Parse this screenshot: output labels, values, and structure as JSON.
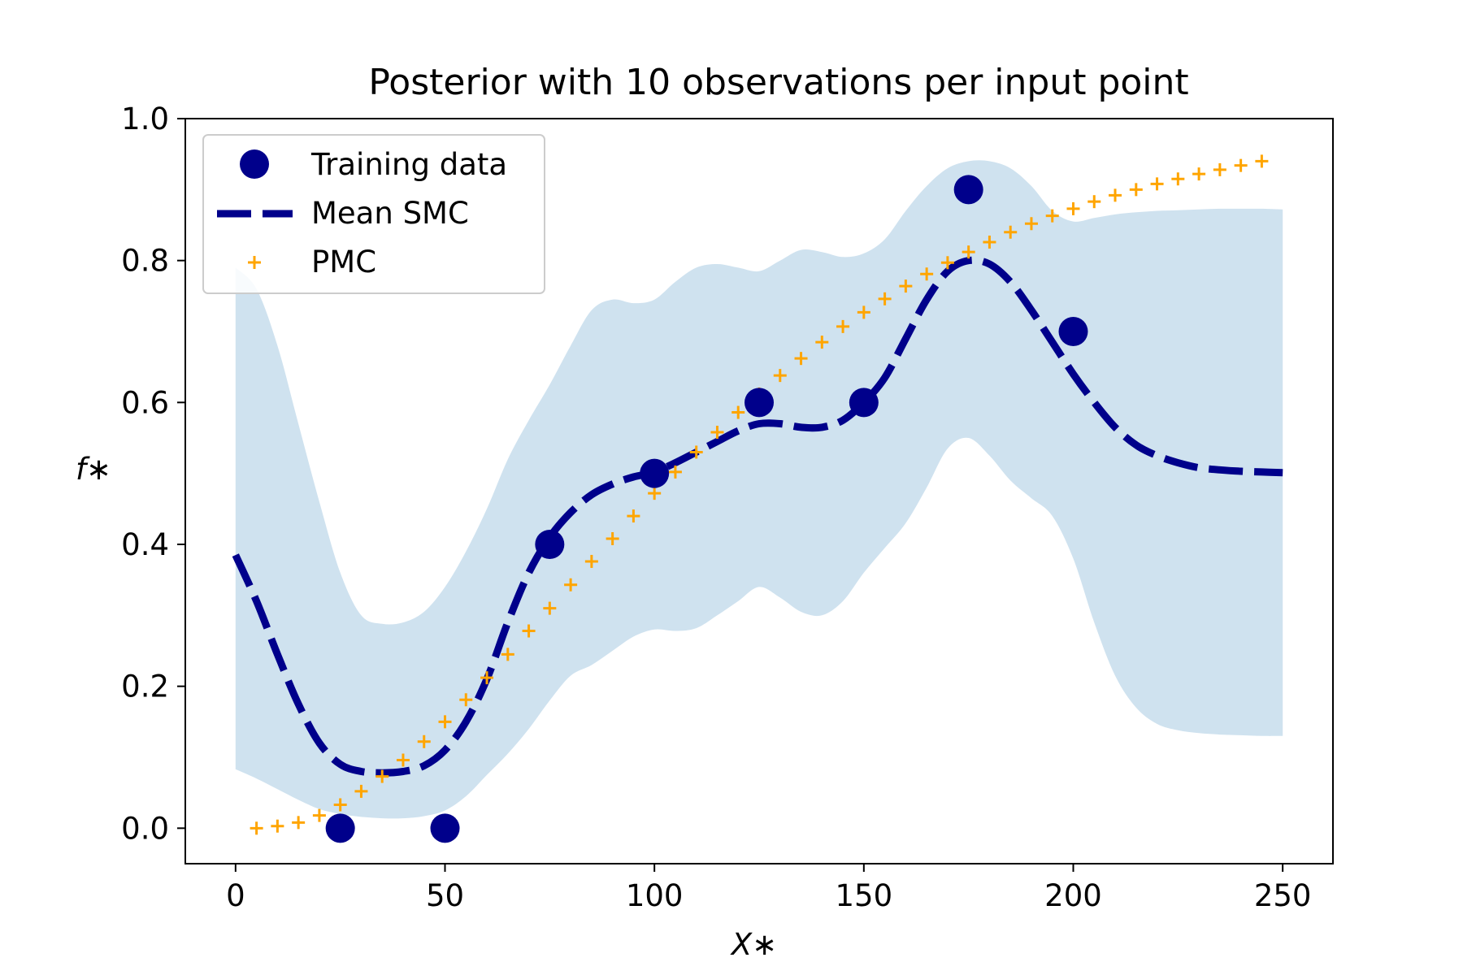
{
  "chart_data": {
    "type": "line",
    "title": "Posterior with 10 observations per input point",
    "xlabel": "X∗",
    "ylabel": "f∗",
    "xlim": [
      -12,
      262
    ],
    "ylim": [
      -0.05,
      1.0
    ],
    "xticks": [
      0,
      50,
      100,
      150,
      200,
      250
    ],
    "yticks": [
      0.0,
      0.2,
      0.4,
      0.6,
      0.8,
      1.0
    ],
    "xtick_labels": [
      "0",
      "50",
      "100",
      "150",
      "200",
      "250"
    ],
    "ytick_labels": [
      "0.0",
      "0.2",
      "0.4",
      "0.6",
      "0.8",
      "1.0"
    ],
    "grid": false,
    "legend_position": "top-left",
    "series": [
      {
        "name": "Training data",
        "kind": "scatter",
        "color": "#00008b",
        "x": [
          25,
          50,
          75,
          100,
          125,
          150,
          175,
          200
        ],
        "y": [
          0.0,
          0.0,
          0.4,
          0.5,
          0.6,
          0.6,
          0.9,
          0.7
        ]
      },
      {
        "name": "Mean SMC",
        "kind": "line",
        "style": "dashed",
        "color": "#00008b",
        "x": [
          0,
          5,
          10,
          15,
          20,
          25,
          30,
          35,
          40,
          45,
          50,
          55,
          60,
          65,
          70,
          75,
          80,
          85,
          90,
          95,
          100,
          105,
          110,
          115,
          120,
          125,
          130,
          135,
          140,
          145,
          150,
          155,
          160,
          165,
          170,
          175,
          180,
          185,
          190,
          195,
          200,
          205,
          210,
          215,
          220,
          225,
          230,
          235,
          240,
          245,
          250
        ],
        "y": [
          0.385,
          0.32,
          0.245,
          0.175,
          0.12,
          0.09,
          0.08,
          0.078,
          0.08,
          0.088,
          0.11,
          0.15,
          0.21,
          0.29,
          0.36,
          0.41,
          0.445,
          0.47,
          0.485,
          0.495,
          0.502,
          0.515,
          0.53,
          0.545,
          0.56,
          0.57,
          0.57,
          0.565,
          0.565,
          0.575,
          0.6,
          0.635,
          0.69,
          0.745,
          0.785,
          0.8,
          0.795,
          0.77,
          0.73,
          0.685,
          0.64,
          0.6,
          0.565,
          0.54,
          0.525,
          0.515,
          0.508,
          0.505,
          0.503,
          0.502,
          0.501
        ]
      },
      {
        "name": "PMC",
        "kind": "scatter",
        "marker": "plus",
        "color": "#ffa500",
        "x": [
          5,
          10,
          15,
          20,
          25,
          30,
          35,
          40,
          45,
          50,
          55,
          60,
          65,
          70,
          75,
          80,
          85,
          90,
          95,
          100,
          105,
          110,
          115,
          120,
          125,
          130,
          135,
          140,
          145,
          150,
          155,
          160,
          165,
          170,
          175,
          180,
          185,
          190,
          195,
          200,
          205,
          210,
          215,
          220,
          225,
          230,
          235,
          240,
          245
        ],
        "y": [
          0.0,
          0.003,
          0.008,
          0.018,
          0.033,
          0.052,
          0.073,
          0.096,
          0.122,
          0.15,
          0.181,
          0.212,
          0.245,
          0.278,
          0.31,
          0.343,
          0.376,
          0.408,
          0.44,
          0.472,
          0.502,
          0.53,
          0.558,
          0.586,
          0.612,
          0.638,
          0.662,
          0.685,
          0.707,
          0.727,
          0.746,
          0.764,
          0.781,
          0.797,
          0.812,
          0.826,
          0.84,
          0.852,
          0.863,
          0.873,
          0.883,
          0.892,
          0.9,
          0.908,
          0.915,
          0.922,
          0.928,
          0.934,
          0.94
        ]
      },
      {
        "kind": "band",
        "color": "#cfe2ef",
        "x": [
          0,
          5,
          10,
          15,
          20,
          25,
          30,
          35,
          40,
          45,
          50,
          55,
          60,
          65,
          70,
          75,
          80,
          85,
          90,
          95,
          100,
          105,
          110,
          115,
          120,
          125,
          130,
          135,
          140,
          145,
          150,
          155,
          160,
          165,
          170,
          175,
          180,
          185,
          190,
          195,
          200,
          205,
          210,
          215,
          220,
          225,
          230,
          235,
          240,
          245,
          250
        ],
        "upper": [
          0.79,
          0.76,
          0.68,
          0.57,
          0.46,
          0.36,
          0.3,
          0.288,
          0.29,
          0.305,
          0.34,
          0.39,
          0.45,
          0.52,
          0.575,
          0.625,
          0.68,
          0.73,
          0.745,
          0.74,
          0.745,
          0.77,
          0.79,
          0.795,
          0.79,
          0.785,
          0.8,
          0.815,
          0.812,
          0.805,
          0.81,
          0.83,
          0.87,
          0.905,
          0.93,
          0.94,
          0.94,
          0.93,
          0.905,
          0.87,
          0.855,
          0.86,
          0.865,
          0.868,
          0.87,
          0.871,
          0.872,
          0.873,
          0.873,
          0.873,
          0.872
        ],
        "lower": [
          0.083,
          0.07,
          0.055,
          0.04,
          0.027,
          0.02,
          0.016,
          0.014,
          0.014,
          0.017,
          0.025,
          0.045,
          0.075,
          0.105,
          0.14,
          0.18,
          0.215,
          0.23,
          0.25,
          0.27,
          0.28,
          0.278,
          0.282,
          0.3,
          0.32,
          0.34,
          0.325,
          0.305,
          0.3,
          0.32,
          0.36,
          0.395,
          0.43,
          0.48,
          0.535,
          0.55,
          0.525,
          0.49,
          0.465,
          0.44,
          0.38,
          0.29,
          0.215,
          0.17,
          0.147,
          0.138,
          0.134,
          0.132,
          0.131,
          0.13,
          0.13
        ]
      }
    ]
  }
}
